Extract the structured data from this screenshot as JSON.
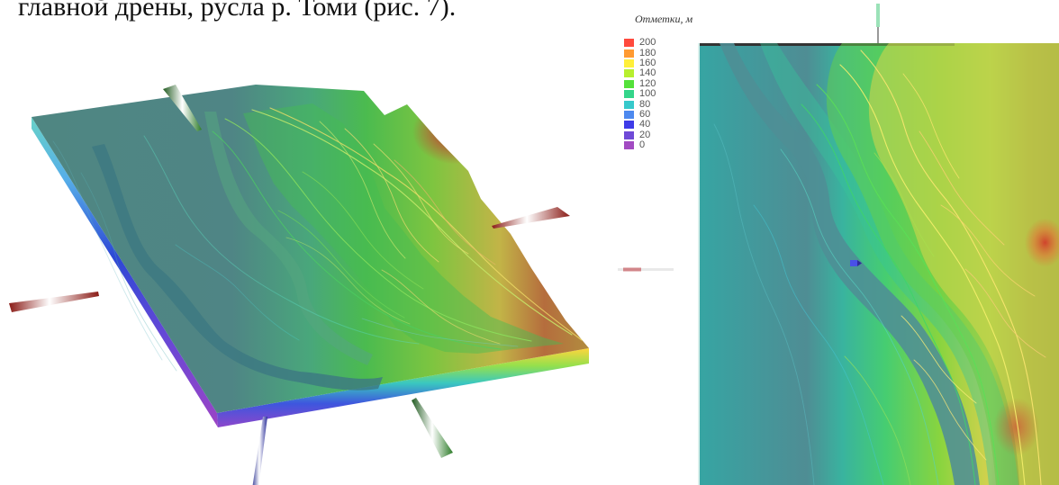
{
  "caption": {
    "line": "главной дрены, русла р. Томи (рис. 7)."
  },
  "legend": {
    "title": "Отметки, м",
    "items": [
      {
        "label": "200",
        "color": "#ff4a3d"
      },
      {
        "label": "180",
        "color": "#ff9a32"
      },
      {
        "label": "160",
        "color": "#ffef3a"
      },
      {
        "label": "140",
        "color": "#b7ef2f"
      },
      {
        "label": "120",
        "color": "#54e13a"
      },
      {
        "label": "100",
        "color": "#34d58a"
      },
      {
        "label": "80",
        "color": "#36c9cb"
      },
      {
        "label": "60",
        "color": "#4d89ef"
      },
      {
        "label": "40",
        "color": "#3e3be8"
      },
      {
        "label": "20",
        "color": "#6f4ad7"
      },
      {
        "label": "0",
        "color": "#a24bc2"
      }
    ]
  },
  "colors": {
    "lowland": "#4f8e8d",
    "river": "#3c7c89",
    "green": "#42b95b",
    "yellow": "#d2cf55",
    "red": "#b85b2d",
    "dark_red": "#8d2e22"
  }
}
